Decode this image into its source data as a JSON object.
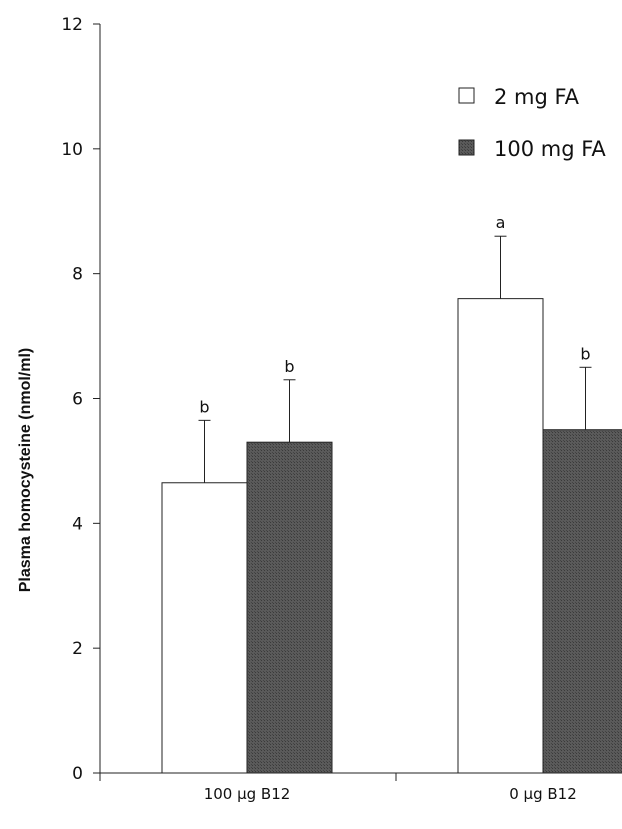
{
  "chart_data": {
    "type": "bar",
    "ylabel": "Plasma homocysteine (nmol/ml)",
    "ylim": [
      0,
      12
    ],
    "yticks": [
      "0",
      "2",
      "4",
      "6",
      "8",
      "10",
      "12"
    ],
    "categories": [
      "100 µg  B12",
      "0 µg  B12"
    ],
    "series": [
      {
        "name": "2 mg FA",
        "values": [
          4.65,
          7.6
        ],
        "errors": [
          1.0,
          1.0
        ],
        "significance": [
          "b",
          "a"
        ],
        "color": "#ffffff"
      },
      {
        "name": "100 mg FA",
        "values": [
          5.3,
          5.5
        ],
        "errors": [
          1.0,
          1.0
        ],
        "significance": [
          "b",
          "b"
        ],
        "color": "#555555"
      }
    ],
    "legend_position": "top-right",
    "grid": false
  }
}
